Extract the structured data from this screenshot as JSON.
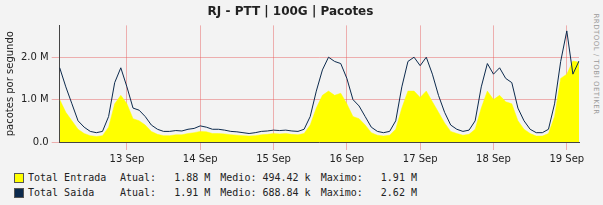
{
  "chart_data": {
    "type": "line",
    "title": "RJ - PTT | 100G | Pacotes",
    "y_label": "pacotes por segundo",
    "watermark": "RRDTOOL / TOBI OETIKER",
    "categories": [
      null,
      null,
      null,
      null,
      null,
      null,
      null,
      null,
      null,
      null,
      null,
      "13 Sep",
      null,
      null,
      null,
      null,
      null,
      null,
      null,
      null,
      null,
      null,
      null,
      "14 Sep",
      null,
      null,
      null,
      null,
      null,
      null,
      null,
      null,
      null,
      null,
      null,
      "15 Sep",
      null,
      null,
      null,
      null,
      null,
      null,
      null,
      null,
      null,
      null,
      null,
      "16 Sep",
      null,
      null,
      null,
      null,
      null,
      null,
      null,
      null,
      null,
      null,
      null,
      "17 Sep",
      null,
      null,
      null,
      null,
      null,
      null,
      null,
      null,
      null,
      null,
      null,
      "18 Sep",
      null,
      null,
      null,
      null,
      null,
      null,
      null,
      null,
      null,
      null,
      null,
      "19 Sep",
      null,
      null
    ],
    "series": [
      {
        "name": "Total Entrada",
        "type": "area",
        "color": "#ffff00",
        "values": [
          1000000,
          700000,
          500000,
          300000,
          200000,
          150000,
          130000,
          150000,
          350000,
          900000,
          1100000,
          900000,
          550000,
          500000,
          400000,
          250000,
          180000,
          150000,
          150000,
          170000,
          170000,
          200000,
          220000,
          250000,
          240000,
          200000,
          200000,
          190000,
          170000,
          160000,
          150000,
          140000,
          150000,
          170000,
          180000,
          200000,
          190000,
          200000,
          180000,
          170000,
          200000,
          400000,
          800000,
          1100000,
          1200000,
          1100000,
          1150000,
          900000,
          600000,
          550000,
          400000,
          220000,
          160000,
          140000,
          160000,
          300000,
          800000,
          1200000,
          1200000,
          1050000,
          1200000,
          950000,
          700000,
          450000,
          250000,
          200000,
          160000,
          180000,
          300000,
          800000,
          1200000,
          1000000,
          1100000,
          950000,
          900000,
          500000,
          300000,
          200000,
          140000,
          140000,
          200000,
          600000,
          1500000,
          1600000,
          1910000,
          1880000
        ],
        "stats": [
          {
            "label": "Atual:",
            "value": 1880000,
            "value_label": "1.88 M"
          },
          {
            "label": "Medio:",
            "value": 494420,
            "value_label": "494.42 k"
          },
          {
            "label": "Maximo:",
            "value": 1910000,
            "value_label": "1.91 M"
          }
        ]
      },
      {
        "name": "Total Saida",
        "type": "line",
        "color": "#0c2a4d",
        "values": [
          1750000,
          1300000,
          900000,
          500000,
          350000,
          250000,
          220000,
          250000,
          600000,
          1400000,
          1750000,
          1300000,
          800000,
          750000,
          600000,
          400000,
          300000,
          250000,
          250000,
          270000,
          260000,
          300000,
          320000,
          380000,
          350000,
          300000,
          300000,
          280000,
          250000,
          240000,
          220000,
          200000,
          220000,
          250000,
          260000,
          280000,
          270000,
          280000,
          260000,
          250000,
          300000,
          600000,
          1200000,
          1700000,
          2000000,
          1900000,
          1850000,
          1500000,
          1000000,
          850000,
          600000,
          350000,
          250000,
          220000,
          250000,
          500000,
          1300000,
          1900000,
          2000000,
          1800000,
          2000000,
          1600000,
          1100000,
          700000,
          400000,
          300000,
          250000,
          280000,
          500000,
          1300000,
          1850000,
          1600000,
          1750000,
          1500000,
          1400000,
          800000,
          500000,
          300000,
          220000,
          220000,
          300000,
          900000,
          1900000,
          2620000,
          1600000,
          1910000
        ],
        "stats": [
          {
            "label": "Atual:",
            "value": 1910000,
            "value_label": "1.91 M"
          },
          {
            "label": "Medio:",
            "value": 688840,
            "value_label": "688.84 k"
          },
          {
            "label": "Maximo:",
            "value": 2620000,
            "value_label": "2.62 M"
          }
        ]
      }
    ],
    "ylim": [
      0,
      2750000
    ],
    "yticks": [
      {
        "value": 0,
        "label": "0.0"
      },
      {
        "value": 1000000,
        "label": "1.0 M"
      },
      {
        "value": 2000000,
        "label": "2.0 M"
      }
    ],
    "grid": true,
    "legend": "bottom"
  }
}
